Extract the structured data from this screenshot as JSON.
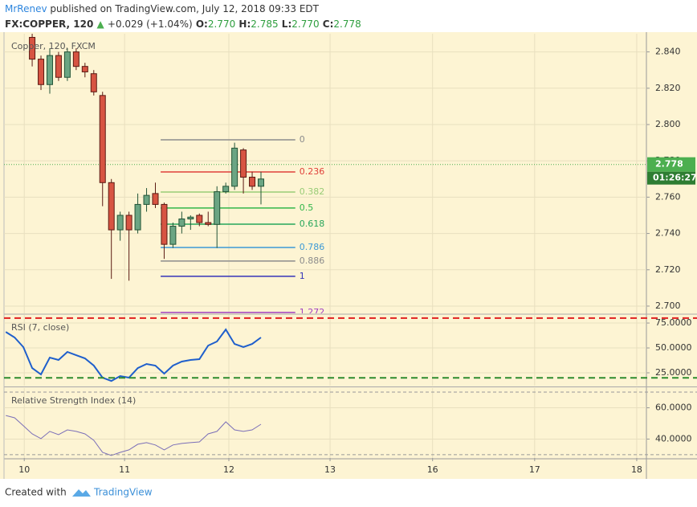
{
  "header": {
    "author": "MrRenev",
    "published": "published on TradingView.com, July 12, 2018 09:33 EDT",
    "symbol": "FX:COPPER, 120",
    "arrow": "▲",
    "change": "+0.029 (+1.04%)",
    "o_label": "O:",
    "o_value": "2.770",
    "h_label": "H:",
    "h_value": "2.785",
    "l_label": "L:",
    "l_value": "2.770",
    "c_label": "C:",
    "c_value": "2.778"
  },
  "footer": {
    "created": "Created with",
    "brand": "TradingView"
  },
  "chart_data": [
    {
      "type": "candlestick",
      "title": "Copper, 120, FXCM",
      "x": [
        0,
        1,
        2,
        3,
        4,
        5,
        6,
        7,
        8,
        9,
        10,
        11,
        12,
        13,
        14,
        15,
        16,
        17,
        18,
        19,
        20,
        21,
        22,
        23,
        24,
        25,
        26
      ],
      "open": [
        2.848,
        2.836,
        2.822,
        2.838,
        2.826,
        2.84,
        2.832,
        2.828,
        2.816,
        2.768,
        2.742,
        2.75,
        2.742,
        2.756,
        2.762,
        2.756,
        2.734,
        2.744,
        2.748,
        2.75,
        2.746,
        2.745,
        2.763,
        2.766,
        2.786,
        2.771,
        2.766
      ],
      "high": [
        2.85,
        2.838,
        2.842,
        2.84,
        2.842,
        2.842,
        2.834,
        2.83,
        2.818,
        2.77,
        2.752,
        2.752,
        2.762,
        2.765,
        2.768,
        2.757,
        2.746,
        2.752,
        2.75,
        2.751,
        2.752,
        2.766,
        2.768,
        2.79,
        2.787,
        2.774,
        2.774
      ],
      "low": [
        2.832,
        2.819,
        2.817,
        2.824,
        2.824,
        2.83,
        2.826,
        2.816,
        2.755,
        2.715,
        2.736,
        2.714,
        2.74,
        2.752,
        2.754,
        2.726,
        2.732,
        2.74,
        2.742,
        2.744,
        2.744,
        2.732,
        2.762,
        2.764,
        2.762,
        2.764,
        2.756
      ],
      "close": [
        2.836,
        2.822,
        2.838,
        2.826,
        2.84,
        2.832,
        2.829,
        2.818,
        2.768,
        2.742,
        2.75,
        2.742,
        2.756,
        2.761,
        2.756,
        2.734,
        2.744,
        2.748,
        2.749,
        2.746,
        2.745,
        2.763,
        2.766,
        2.787,
        2.771,
        2.766,
        2.77
      ],
      "up_color": "#6ba583",
      "down_color": "#d75442",
      "xlim": [
        -3.2,
        69.8
      ],
      "ylim": [
        2.696,
        2.85
      ],
      "yticks": [
        {
          "value": 2.7,
          "label": "2.700"
        },
        {
          "value": 2.72,
          "label": "2.720"
        },
        {
          "value": 2.74,
          "label": "2.740"
        },
        {
          "value": 2.76,
          "label": "2.760"
        },
        {
          "value": 2.78,
          "label": "2.780"
        },
        {
          "value": 2.8,
          "label": "2.800"
        },
        {
          "value": 2.82,
          "label": "2.820"
        },
        {
          "value": 2.84,
          "label": "2.840"
        }
      ],
      "grid": true,
      "fib_range_x": [
        14.6,
        29.9
      ],
      "fib_levels": [
        {
          "level": 0,
          "price": 2.7916,
          "color": "#8c8c8c"
        },
        {
          "level": 0.236,
          "price": 2.7739,
          "color": "#e0403a"
        },
        {
          "level": 0.382,
          "price": 2.7628,
          "color": "#99cc77"
        },
        {
          "level": 0.5,
          "price": 2.754,
          "color": "#33b64a"
        },
        {
          "level": 0.618,
          "price": 2.7451,
          "color": "#26a65b"
        },
        {
          "level": 0.786,
          "price": 2.7323,
          "color": "#3d9ad6"
        },
        {
          "level": 0.886,
          "price": 2.7248,
          "color": "#8c8c8c"
        },
        {
          "level": 1,
          "price": 2.7164,
          "color": "#3535b8"
        },
        {
          "level": 1.272,
          "price": 2.6965,
          "color": "#a040c0"
        }
      ],
      "price_marker": {
        "value": 2.778,
        "label": "2.778",
        "timer": "01:26:27",
        "color": "#4caf50"
      }
    },
    {
      "type": "line",
      "title": "RSI (7, close)",
      "series": [
        {
          "name": "RSI",
          "color": "#1f5fcc",
          "x": [
            -3,
            -2,
            -1,
            0,
            1,
            2,
            3,
            4,
            5,
            6,
            7,
            8,
            9,
            10,
            11,
            12,
            13,
            14,
            15,
            16,
            17,
            18,
            19,
            20,
            21,
            22,
            23,
            24,
            25,
            26
          ],
          "values": [
            66.1,
            60.5,
            50.8,
            29.8,
            23.4,
            40.3,
            37.9,
            46.0,
            42.7,
            39.5,
            32.3,
            20.2,
            16.9,
            21.8,
            20.2,
            29.8,
            33.9,
            32.3,
            24.2,
            32.3,
            36.3,
            37.9,
            38.7,
            52.4,
            56.5,
            68.5,
            54.0,
            50.8,
            54.0,
            60.5
          ]
        }
      ],
      "levels": [
        80,
        20
      ],
      "level_colors": [
        "#e02020",
        "#2e8b2e"
      ],
      "xlim": [
        -3.2,
        69.8
      ],
      "ylim": [
        12.1,
        83.1
      ],
      "yticks": [
        {
          "value": 25,
          "label": "25.0000"
        },
        {
          "value": 50,
          "label": "50.0000"
        },
        {
          "value": 75,
          "label": "75.0000"
        }
      ],
      "grid": true
    },
    {
      "type": "line",
      "title": "Relative Strength Index (14)",
      "series": [
        {
          "name": "RSI",
          "color": "#7b6fb8",
          "x": [
            -3,
            -2,
            -1,
            0,
            1,
            2,
            3,
            4,
            5,
            6,
            7,
            8,
            9,
            10,
            11,
            12,
            13,
            14,
            15,
            16,
            17,
            18,
            19,
            20,
            21,
            22,
            23,
            24,
            25,
            26
          ],
          "values": [
            55.1,
            53.6,
            48.5,
            43.3,
            40.3,
            44.9,
            42.8,
            45.9,
            44.9,
            43.3,
            39.2,
            31.5,
            29.5,
            31.5,
            33.1,
            36.7,
            37.7,
            36.2,
            33.1,
            36.2,
            37.2,
            37.7,
            38.2,
            43.3,
            44.9,
            51.0,
            45.9,
            44.9,
            45.9,
            49.5
          ]
        }
      ],
      "levels": [
        70,
        30
      ],
      "level_colors": [
        "#999999",
        "#999999"
      ],
      "xlim": [
        -3.2,
        69.8
      ],
      "ylim": [
        27.9,
        72.6
      ],
      "yticks": [
        {
          "value": 40,
          "label": "40.0000"
        },
        {
          "value": 60,
          "label": "60.0000"
        }
      ],
      "xticks": [
        {
          "value": -0.9,
          "label": "10"
        },
        {
          "value": 10.5,
          "label": "11"
        },
        {
          "value": 22.35,
          "label": "12"
        },
        {
          "value": 33.85,
          "label": "13"
        },
        {
          "value": 45.5,
          "label": "16"
        },
        {
          "value": 57.1,
          "label": "17"
        },
        {
          "value": 68.7,
          "label": "18"
        }
      ],
      "grid": true
    }
  ]
}
